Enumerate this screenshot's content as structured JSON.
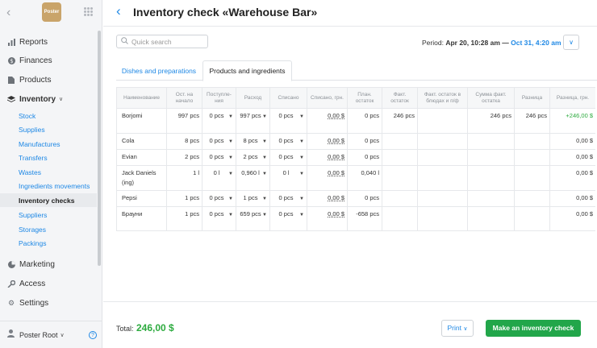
{
  "sidebar": {
    "logo_text": "Poster",
    "items": [
      {
        "label": "Reports",
        "icon": "bar-chart-icon"
      },
      {
        "label": "Finances",
        "icon": "dollar-icon"
      },
      {
        "label": "Products",
        "icon": "document-icon"
      },
      {
        "label": "Inventory",
        "icon": "layers-icon"
      },
      {
        "label": "Marketing",
        "icon": "pie-chart-icon"
      },
      {
        "label": "Access",
        "icon": "key-icon"
      },
      {
        "label": "Settings",
        "icon": "gear-icon"
      }
    ],
    "inventory_subitems": [
      "Stock",
      "Supplies",
      "Manufactures",
      "Transfers",
      "Wastes",
      "Ingredients movements",
      "Inventory checks",
      "Suppliers",
      "Storages",
      "Packings"
    ],
    "active_subitem": "Inventory checks",
    "user": "Poster Root"
  },
  "header": {
    "title": "Inventory check «Warehouse Bar»"
  },
  "search": {
    "placeholder": "Quick search"
  },
  "period": {
    "label": "Period:",
    "from": "Apr 20, 10:28 am",
    "dash": "—",
    "to": "Oct 31, 4:20 am"
  },
  "tabs": [
    {
      "label": "Dishes and preparations",
      "active": false
    },
    {
      "label": "Products and ingredients",
      "active": true
    }
  ],
  "table": {
    "headers": [
      "Наименование",
      "Ост. на начало",
      "Поступле-ния",
      "Расход",
      "Списано",
      "Списано, грн.",
      "План. остаток",
      "Факт. остаток",
      "Факт. остаток в блюдах и п/ф",
      "Сумма факт. остатка",
      "Разница",
      "Разница, грн."
    ],
    "rows": [
      {
        "name": "Borjomi",
        "start": "997 pcs",
        "income": "0 pcs",
        "expense": "997 pcs",
        "written": "0 pcs",
        "written_uah": "0,00 $",
        "plan": "0 pcs",
        "fact": "246 pcs",
        "fact_dishes": "",
        "fact_sum": "246 pcs",
        "diff": "246 pcs",
        "diff_uah": "+246,00 $",
        "diff_positive": true
      },
      {
        "name": "Cola",
        "start": "8 pcs",
        "income": "0 pcs",
        "expense": "8 pcs",
        "written": "0 pcs",
        "written_uah": "0,00 $",
        "plan": "0 pcs",
        "fact": "",
        "fact_dishes": "",
        "fact_sum": "",
        "diff": "",
        "diff_uah": "0,00 $",
        "diff_positive": false
      },
      {
        "name": "Evian",
        "start": "2 pcs",
        "income": "0 pcs",
        "expense": "2 pcs",
        "written": "0 pcs",
        "written_uah": "0,00 $",
        "plan": "0 pcs",
        "fact": "",
        "fact_dishes": "",
        "fact_sum": "",
        "diff": "",
        "diff_uah": "0,00 $",
        "diff_positive": false
      },
      {
        "name": "Jack Daniels (ing)",
        "start": "1 l",
        "income": "0 l",
        "expense": "0,960 l",
        "written": "0 l",
        "written_uah": "0,00 $",
        "plan": "0,040 l",
        "fact": "",
        "fact_dishes": "",
        "fact_sum": "",
        "diff": "",
        "diff_uah": "0,00 $",
        "diff_positive": false
      },
      {
        "name": "Pepsi",
        "start": "1 pcs",
        "income": "0 pcs",
        "expense": "1 pcs",
        "written": "0 pcs",
        "written_uah": "0,00 $",
        "plan": "0 pcs",
        "fact": "",
        "fact_dishes": "",
        "fact_sum": "",
        "diff": "",
        "diff_uah": "0,00 $",
        "diff_positive": false
      },
      {
        "name": "Брауни",
        "start": "1 pcs",
        "income": "0 pcs",
        "expense": "659 pcs",
        "written": "0 pcs",
        "written_uah": "0,00 $",
        "plan": "-658 pcs",
        "fact": "",
        "fact_dishes": "",
        "fact_sum": "",
        "diff": "",
        "diff_uah": "0,00 $",
        "diff_positive": false
      }
    ]
  },
  "footer": {
    "total_label": "Total:",
    "total_value": "246,00 $",
    "print_label": "Print",
    "make_label": "Make an inventory check"
  },
  "colors": {
    "accent": "#1e88e5",
    "green": "#22a64a",
    "positive": "#2dab3f"
  }
}
